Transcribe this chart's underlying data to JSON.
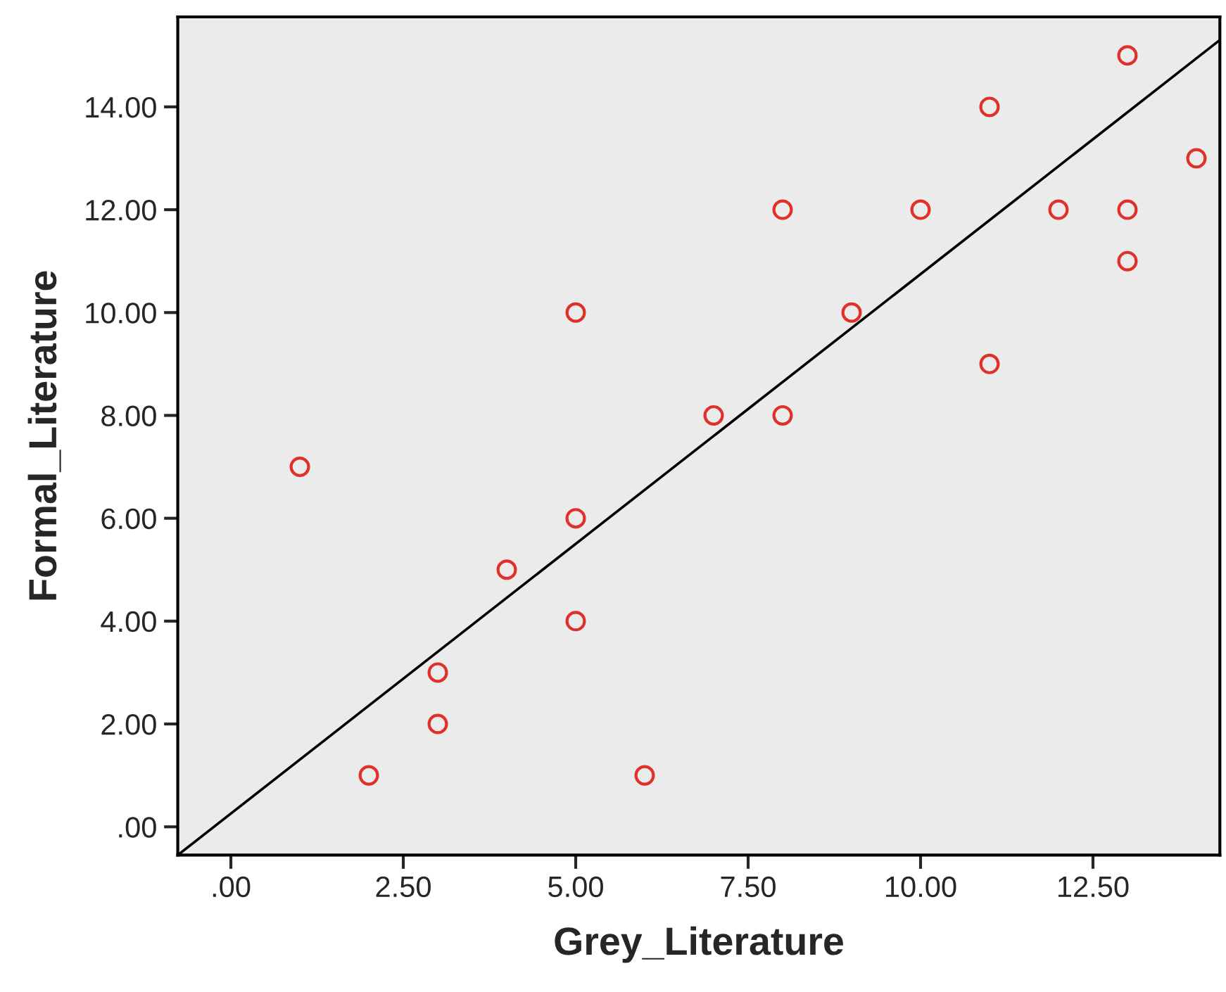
{
  "chart_data": {
    "type": "scatter",
    "xlabel": "Grey_Literature",
    "ylabel": "Formal_Literature",
    "xlim": [
      -0.77,
      14.34
    ],
    "ylim": [
      -0.55,
      15.75
    ],
    "xticks": [
      {
        "value": 0,
        "label": ".00"
      },
      {
        "value": 2.5,
        "label": "2.50"
      },
      {
        "value": 5,
        "label": "5.00"
      },
      {
        "value": 7.5,
        "label": "7.50"
      },
      {
        "value": 10,
        "label": "10.00"
      },
      {
        "value": 12.5,
        "label": "12.50"
      }
    ],
    "yticks": [
      {
        "value": 0,
        "label": ".00"
      },
      {
        "value": 2,
        "label": "2.00"
      },
      {
        "value": 4,
        "label": "4.00"
      },
      {
        "value": 6,
        "label": "6.00"
      },
      {
        "value": 8,
        "label": "8.00"
      },
      {
        "value": 10,
        "label": "10.00"
      },
      {
        "value": 12,
        "label": "12.00"
      },
      {
        "value": 14,
        "label": "14.00"
      }
    ],
    "grid": false,
    "series": [
      {
        "marker": "circle",
        "color": "#e0302a",
        "x": [
          1,
          2,
          3,
          3,
          4,
          5,
          5,
          5,
          6,
          7,
          8,
          8,
          9,
          10,
          11,
          11,
          12,
          13,
          13,
          13,
          14
        ],
        "values": [
          7,
          1,
          3,
          2,
          5,
          10,
          6,
          4,
          1,
          8,
          12,
          8,
          10,
          12,
          14,
          9,
          12,
          15,
          12,
          11,
          13
        ]
      },
      {
        "type": "line",
        "marker": "none",
        "color": "#000000",
        "x": [
          -0.77,
          14.34
        ],
        "values": [
          -0.55,
          15.3
        ]
      }
    ]
  }
}
